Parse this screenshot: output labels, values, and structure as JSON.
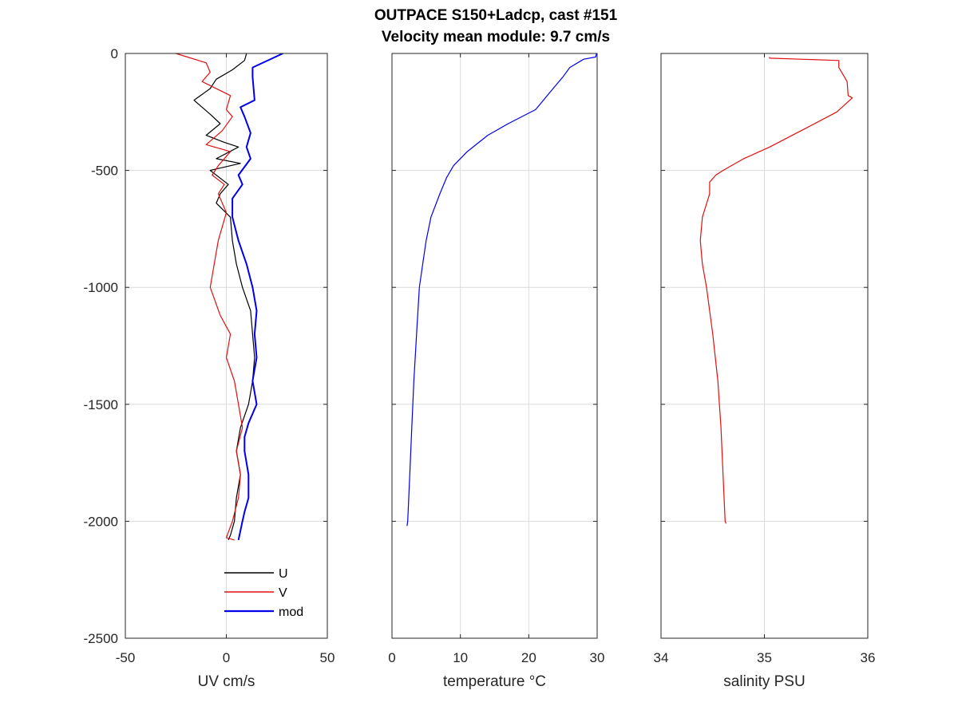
{
  "figure": {
    "title_line1": "OUTPACE S150+Ladcp, cast #151",
    "title_line2": "Velocity mean module:  9.7 cm/s"
  },
  "chart_data": [
    {
      "type": "line",
      "xlabel": "UV cm/s",
      "ylabel": "",
      "xlim": [
        -50,
        50
      ],
      "ylim": [
        -2500,
        0
      ],
      "xticks": [
        "-50",
        "0",
        "50"
      ],
      "yticks": [
        "0",
        "-500",
        "-1000",
        "-1500",
        "-2000",
        "-2500"
      ],
      "grid": true,
      "legend_position": "bottom-right",
      "colors": {
        "U": "#000000",
        "V": "#e01010",
        "mod": "#0000ee"
      },
      "series": [
        {
          "name": "U",
          "points": [
            [
              10,
              0
            ],
            [
              9,
              -30
            ],
            [
              3,
              -70
            ],
            [
              -5,
              -110
            ],
            [
              -8,
              -150
            ],
            [
              -16,
              -200
            ],
            [
              -8,
              -260
            ],
            [
              -3,
              -300
            ],
            [
              -10,
              -350
            ],
            [
              -1,
              -380
            ],
            [
              6,
              -400
            ],
            [
              -5,
              -450
            ],
            [
              7,
              -470
            ],
            [
              -8,
              -500
            ],
            [
              1,
              -560
            ],
            [
              -3,
              -600
            ],
            [
              -5,
              -640
            ],
            [
              2,
              -700
            ],
            [
              3,
              -800
            ],
            [
              5,
              -900
            ],
            [
              8,
              -1000
            ],
            [
              12,
              -1100
            ],
            [
              13,
              -1200
            ],
            [
              14,
              -1300
            ],
            [
              13,
              -1400
            ],
            [
              12,
              -1450
            ],
            [
              11,
              -1500
            ],
            [
              7,
              -1600
            ],
            [
              5,
              -1700
            ],
            [
              7,
              -1800
            ],
            [
              5,
              -1900
            ],
            [
              4,
              -2000
            ],
            [
              2,
              -2060
            ],
            [
              1,
              -2080
            ]
          ]
        },
        {
          "name": "V",
          "points": [
            [
              -25,
              0
            ],
            [
              -10,
              -40
            ],
            [
              -8,
              -80
            ],
            [
              -12,
              -120
            ],
            [
              2,
              -180
            ],
            [
              0,
              -240
            ],
            [
              3,
              -270
            ],
            [
              -2,
              -330
            ],
            [
              -10,
              -390
            ],
            [
              2,
              -420
            ],
            [
              -4,
              -480
            ],
            [
              -7,
              -520
            ],
            [
              -1,
              -560
            ],
            [
              -4,
              -600
            ],
            [
              0,
              -680
            ],
            [
              -4,
              -800
            ],
            [
              -8,
              -1000
            ],
            [
              -3,
              -1120
            ],
            [
              2,
              -1200
            ],
            [
              0,
              -1300
            ],
            [
              4,
              -1400
            ],
            [
              6,
              -1500
            ],
            [
              8,
              -1600
            ],
            [
              5,
              -1700
            ],
            [
              7,
              -1800
            ],
            [
              6,
              -1900
            ],
            [
              3,
              -2000
            ],
            [
              0,
              -2070
            ],
            [
              4,
              -2080
            ]
          ]
        },
        {
          "name": "mod",
          "points": [
            [
              28,
              0
            ],
            [
              13,
              -60
            ],
            [
              13,
              -100
            ],
            [
              14,
              -200
            ],
            [
              7,
              -230
            ],
            [
              9,
              -270
            ],
            [
              12,
              -340
            ],
            [
              10,
              -400
            ],
            [
              12,
              -450
            ],
            [
              6,
              -520
            ],
            [
              8,
              -560
            ],
            [
              3,
              -620
            ],
            [
              3,
              -700
            ],
            [
              6,
              -800
            ],
            [
              8,
              -850
            ],
            [
              10,
              -900
            ],
            [
              13,
              -1000
            ],
            [
              15,
              -1100
            ],
            [
              14,
              -1200
            ],
            [
              15,
              -1300
            ],
            [
              13,
              -1400
            ],
            [
              15,
              -1500
            ],
            [
              11,
              -1580
            ],
            [
              9,
              -1640
            ],
            [
              9,
              -1700
            ],
            [
              11,
              -1800
            ],
            [
              11,
              -1900
            ],
            [
              9,
              -1960
            ],
            [
              8,
              -2000
            ],
            [
              7,
              -2040
            ],
            [
              6,
              -2080
            ]
          ]
        }
      ]
    },
    {
      "type": "line",
      "xlabel": "temperature °C",
      "ylabel": "",
      "xlim": [
        0,
        30
      ],
      "ylim": [
        -2500,
        0
      ],
      "xticks": [
        "0",
        "10",
        "20",
        "30"
      ],
      "grid": true,
      "colors": {
        "temperature": "#0000ee"
      },
      "series": [
        {
          "name": "",
          "points": [
            [
              29.9,
              0
            ],
            [
              29.8,
              -15
            ],
            [
              28,
              -25
            ],
            [
              26,
              -60
            ],
            [
              25,
              -100
            ],
            [
              23,
              -170
            ],
            [
              21,
              -240
            ],
            [
              17,
              -300
            ],
            [
              14,
              -350
            ],
            [
              11,
              -420
            ],
            [
              9,
              -480
            ],
            [
              8,
              -530
            ],
            [
              7,
              -600
            ],
            [
              5.7,
              -700
            ],
            [
              5,
              -800
            ],
            [
              4.5,
              -900
            ],
            [
              4.0,
              -1000
            ],
            [
              3.6,
              -1200
            ],
            [
              3.2,
              -1400
            ],
            [
              2.9,
              -1600
            ],
            [
              2.6,
              -1800
            ],
            [
              2.3,
              -2000
            ],
            [
              2.2,
              -2020
            ]
          ]
        }
      ]
    },
    {
      "type": "line",
      "xlabel": "salinity PSU",
      "ylabel": "",
      "xlim": [
        34,
        36
      ],
      "ylim": [
        -2500,
        0
      ],
      "xticks": [
        "34",
        "35",
        "36"
      ],
      "grid": true,
      "colors": {
        "salinity": "#e01010"
      },
      "series": [
        {
          "name": "",
          "points": [
            [
              35.05,
              -15
            ],
            [
              35.05,
              -20
            ],
            [
              35.72,
              -30
            ],
            [
              35.72,
              -60
            ],
            [
              35.8,
              -120
            ],
            [
              35.81,
              -180
            ],
            [
              35.85,
              -190
            ],
            [
              35.7,
              -250
            ],
            [
              35.4,
              -320
            ],
            [
              35.05,
              -400
            ],
            [
              34.8,
              -450
            ],
            [
              34.6,
              -500
            ],
            [
              34.53,
              -520
            ],
            [
              34.47,
              -550
            ],
            [
              34.47,
              -600
            ],
            [
              34.4,
              -700
            ],
            [
              34.38,
              -800
            ],
            [
              34.4,
              -900
            ],
            [
              34.44,
              -1000
            ],
            [
              34.5,
              -1200
            ],
            [
              34.55,
              -1400
            ],
            [
              34.58,
              -1600
            ],
            [
              34.6,
              -1800
            ],
            [
              34.62,
              -2000
            ],
            [
              34.63,
              -2010
            ]
          ]
        }
      ]
    }
  ]
}
